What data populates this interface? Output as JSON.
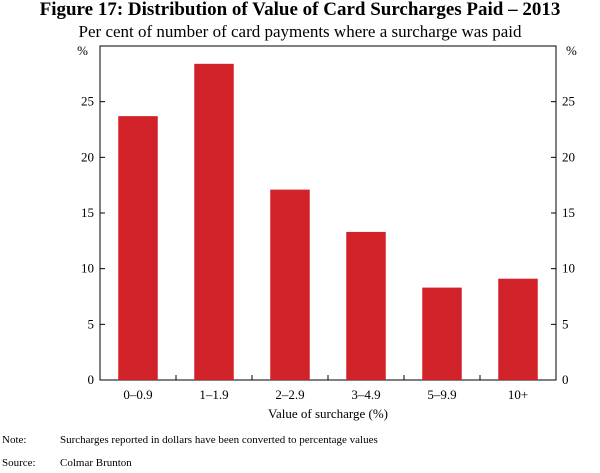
{
  "figure": {
    "title": "Figure 17: Distribution of Value of Card Surcharges Paid – 2013",
    "subtitle": "Per cent of number of card payments where a surcharge was paid"
  },
  "chart_data": {
    "type": "bar",
    "categories": [
      "0–0.9",
      "1–1.9",
      "2–2.9",
      "3–4.9",
      "5–9.9",
      "10+"
    ],
    "values": [
      23.7,
      28.4,
      17.1,
      13.3,
      8.3,
      9.1
    ],
    "xlabel": "Value of surcharge (%)",
    "ylabel_left": "%",
    "ylabel_right": "%",
    "ylim": [
      0,
      30
    ],
    "yticks": [
      0,
      5,
      10,
      15,
      20,
      25
    ],
    "grid": false,
    "bar_color": "#d2232a",
    "legend": "none"
  },
  "notes": [
    {
      "label": "Note:",
      "text": "Surcharges reported in dollars have been converted to percentage values"
    },
    {
      "label": "Source:",
      "text": "Colmar Brunton"
    }
  ]
}
